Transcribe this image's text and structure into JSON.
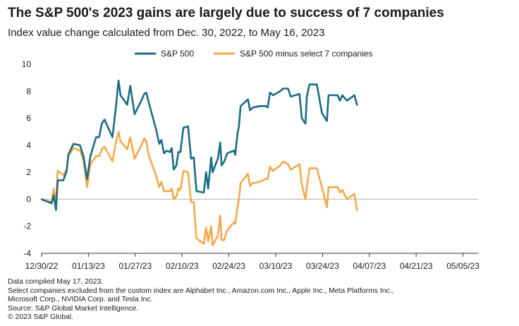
{
  "header": {
    "title": "The S&P 500's 2023 gains are largely due to success of 7 companies",
    "subtitle": "Index value change calculated from Dec. 30, 2022, to May 16, 2023"
  },
  "footer": {
    "lines": [
      "Data compiled May 17, 2023.",
      "Select companies excluded from the custom index are Alphabet Inc., Amazon.com Inc., Apple Inc., Meta Platforms Inc.,",
      "Microsoft Corp., NVIDIA Corp. and Tesla Inc.",
      "Source: S&P Global Market Intelligence.",
      "© 2023 S&P Global."
    ]
  },
  "chart_data": {
    "type": "line",
    "title": "The S&P 500's 2023 gains are largely due to success of 7 companies",
    "subtitle": "Index value change calculated from Dec. 30, 2022, to May 16, 2023",
    "xlabel": "",
    "ylabel": "",
    "ylim": [
      -4,
      10
    ],
    "yticks": [
      10,
      8,
      6,
      4,
      2,
      0,
      -2,
      -4
    ],
    "x_tick_labels": [
      "12/30/22",
      "01/13/23",
      "01/27/23",
      "02/10/23",
      "02/24/23",
      "03/10/23",
      "03/24/23",
      "04/07/23",
      "04/21/23",
      "05/05/23"
    ],
    "x_tick_day_offsets": [
      0,
      14,
      28,
      42,
      56,
      70,
      84,
      98,
      112,
      126
    ],
    "x_range_days": [
      0,
      137
    ],
    "grid": false,
    "legend_position": "top-center",
    "series": [
      {
        "name": "S&P 500",
        "color": "#1a6b85",
        "points": [
          [
            0,
            0
          ],
          [
            3,
            -0.3
          ],
          [
            3.6,
            0.3
          ],
          [
            4.3,
            -0.8
          ],
          [
            4.8,
            1.4
          ],
          [
            6.5,
            1.4
          ],
          [
            7.5,
            2.1
          ],
          [
            8,
            3.3
          ],
          [
            9.5,
            4.1
          ],
          [
            11.5,
            4.0
          ],
          [
            12.5,
            3.2
          ],
          [
            13.6,
            1.5
          ],
          [
            14.6,
            3.2
          ],
          [
            16.3,
            4.6
          ],
          [
            17.2,
            4.6
          ],
          [
            18,
            5.6
          ],
          [
            18.8,
            5.9
          ],
          [
            21.2,
            4.6
          ],
          [
            22.2,
            6.8
          ],
          [
            23,
            8.8
          ],
          [
            23.6,
            7.7
          ],
          [
            25.6,
            7.0
          ],
          [
            26.5,
            8.4
          ],
          [
            27.8,
            6.3
          ],
          [
            30,
            7.4
          ],
          [
            30.7,
            7.8
          ],
          [
            31.3,
            7.9
          ],
          [
            32,
            7.2
          ],
          [
            34.3,
            5.1
          ],
          [
            35.2,
            4.1
          ],
          [
            35.8,
            4.4
          ],
          [
            36.6,
            3.4
          ],
          [
            37.4,
            3.6
          ],
          [
            38.4,
            3.5
          ],
          [
            38.9,
            3.8
          ],
          [
            39.5,
            2.2
          ],
          [
            40.3,
            2.5
          ],
          [
            40.9,
            3.5
          ],
          [
            41.5,
            3.5
          ],
          [
            42.4,
            5.3
          ],
          [
            43.8,
            5.4
          ],
          [
            44.7,
            3.0
          ],
          [
            45.5,
            3.1
          ],
          [
            46.3,
            0.6
          ],
          [
            48.5,
            0.5
          ],
          [
            49.2,
            2.0
          ],
          [
            49.8,
            0.8
          ],
          [
            50.7,
            3.1
          ],
          [
            51.1,
            2.0
          ],
          [
            52.7,
            3.0
          ],
          [
            53.4,
            4.2
          ],
          [
            53.8,
            2.5
          ],
          [
            54.6,
            2.8
          ],
          [
            55.5,
            3.4
          ],
          [
            57.5,
            3.6
          ],
          [
            57.9,
            3.3
          ],
          [
            58.6,
            4.9
          ],
          [
            59,
            5.4
          ],
          [
            59.5,
            6.9
          ],
          [
            61.7,
            7.4
          ],
          [
            62.3,
            6.6
          ],
          [
            63.2,
            6.8
          ],
          [
            65.3,
            6.9
          ],
          [
            67,
            6.9
          ],
          [
            67.6,
            6.8
          ],
          [
            68.3,
            7.9
          ],
          [
            69.2,
            7.7
          ],
          [
            71.3,
            8.0
          ],
          [
            72.2,
            8.2
          ],
          [
            73.7,
            8.2
          ],
          [
            74.5,
            7.6
          ],
          [
            77.1,
            7.8
          ],
          [
            77.8,
            6.0
          ],
          [
            78.9,
            5.6
          ],
          [
            79.3,
            7.6
          ],
          [
            80.1,
            8.5
          ],
          [
            82.3,
            8.5
          ],
          [
            83.8,
            6.4
          ],
          [
            85.3,
            5.8
          ],
          [
            85.8,
            7.7
          ],
          [
            88.5,
            7.7
          ],
          [
            89.2,
            7.3
          ],
          [
            89.9,
            7.7
          ],
          [
            91.3,
            7.3
          ],
          [
            93.5,
            7.7
          ],
          [
            94.3,
            7.0
          ]
        ]
      },
      {
        "name": "S&P 500 minus select 7 companies",
        "color": "#f4a84a",
        "points": [
          [
            0,
            0
          ],
          [
            3,
            -0.2
          ],
          [
            3.6,
            0.8
          ],
          [
            4.3,
            -0.3
          ],
          [
            4.8,
            2.1
          ],
          [
            6.5,
            1.8
          ],
          [
            7.5,
            2.2
          ],
          [
            8,
            3.2
          ],
          [
            9.5,
            3.8
          ],
          [
            11.5,
            3.6
          ],
          [
            12.5,
            2.9
          ],
          [
            13.6,
            0.9
          ],
          [
            14.6,
            2.6
          ],
          [
            16.3,
            3.2
          ],
          [
            17.2,
            3.2
          ],
          [
            18,
            3.7
          ],
          [
            18.8,
            3.9
          ],
          [
            21.2,
            2.8
          ],
          [
            22.2,
            4.2
          ],
          [
            23,
            5.0
          ],
          [
            23.6,
            4.3
          ],
          [
            25.6,
            3.7
          ],
          [
            26.5,
            4.6
          ],
          [
            27.8,
            3.0
          ],
          [
            30,
            4.1
          ],
          [
            30.7,
            4.5
          ],
          [
            31.3,
            4.3
          ],
          [
            32,
            3.3
          ],
          [
            34.3,
            1.7
          ],
          [
            35.2,
            0.9
          ],
          [
            35.8,
            1.3
          ],
          [
            36.6,
            0.6
          ],
          [
            37.4,
            0.6
          ],
          [
            38.4,
            0.6
          ],
          [
            38.9,
            0.8
          ],
          [
            39.5,
            0.0
          ],
          [
            40.3,
            0.2
          ],
          [
            40.9,
            0.8
          ],
          [
            41.5,
            0.7
          ],
          [
            42.4,
            2.1
          ],
          [
            43.8,
            2.0
          ],
          [
            44.7,
            -0.2
          ],
          [
            45.5,
            -0.2
          ],
          [
            46.3,
            -2.9
          ],
          [
            48.5,
            -3.3
          ],
          [
            49.2,
            -2.1
          ],
          [
            49.8,
            -3.1
          ],
          [
            50.7,
            -2.0
          ],
          [
            51.1,
            -3.4
          ],
          [
            52.7,
            -2.7
          ],
          [
            53.4,
            -1.2
          ],
          [
            53.8,
            -3.0
          ],
          [
            54.6,
            -3.0
          ],
          [
            55.5,
            -2.3
          ],
          [
            57.5,
            -1.7
          ],
          [
            57.9,
            -1.8
          ],
          [
            58.6,
            -0.5
          ],
          [
            59,
            0.0
          ],
          [
            59.5,
            1.2
          ],
          [
            61.7,
            1.9
          ],
          [
            62.3,
            1.0
          ],
          [
            63.2,
            1.2
          ],
          [
            65.3,
            1.3
          ],
          [
            67,
            1.5
          ],
          [
            67.6,
            1.5
          ],
          [
            68.3,
            2.4
          ],
          [
            69.2,
            2.1
          ],
          [
            71.3,
            2.5
          ],
          [
            72.2,
            2.8
          ],
          [
            73.7,
            2.6
          ],
          [
            74.5,
            2.2
          ],
          [
            77.1,
            2.6
          ],
          [
            77.8,
            1.1
          ],
          [
            78.9,
            0.0
          ],
          [
            79.3,
            0.9
          ],
          [
            80.1,
            2.3
          ],
          [
            82.3,
            2.3
          ],
          [
            83.8,
            0.9
          ],
          [
            85.3,
            -0.6
          ],
          [
            85.8,
            0.9
          ],
          [
            88.5,
            0.9
          ],
          [
            89.2,
            0.5
          ],
          [
            89.9,
            0.7
          ],
          [
            91.3,
            0.0
          ],
          [
            93.5,
            0.4
          ],
          [
            94.3,
            -0.8
          ]
        ]
      }
    ]
  }
}
